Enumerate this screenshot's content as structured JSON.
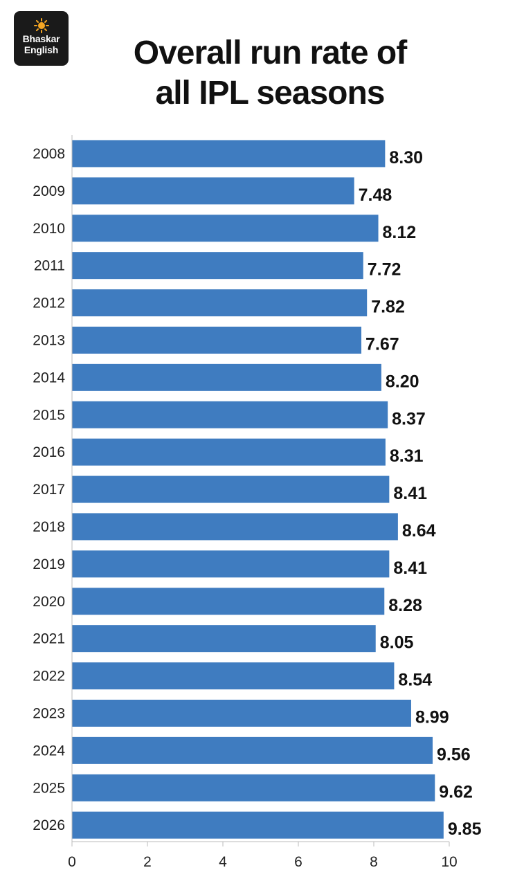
{
  "logo": {
    "line1": "Bhaskar",
    "line2": "English",
    "icon": "sun-icon"
  },
  "title_line1": "Overall run rate of",
  "title_line2": "all IPL seasons",
  "colors": {
    "bar": "#3f7cc0",
    "axis": "#bbbbbb",
    "logo_bg": "#1a1a1a",
    "sun": "#f5a623"
  },
  "chart_data": {
    "type": "bar",
    "orientation": "horizontal",
    "title": "Overall run rate of all IPL seasons",
    "xlabel": "",
    "ylabel": "",
    "xlim": [
      0,
      10
    ],
    "x_ticks": [
      0,
      2,
      4,
      6,
      8,
      10
    ],
    "grid": false,
    "categories": [
      "2008",
      "2009",
      "2010",
      "2011",
      "2012",
      "2013",
      "2014",
      "2015",
      "2016",
      "2017",
      "2018",
      "2019",
      "2020",
      "2021",
      "2022",
      "2023",
      "2024",
      "2025",
      "2026"
    ],
    "values": [
      8.3,
      7.48,
      8.12,
      7.72,
      7.82,
      7.67,
      8.2,
      8.37,
      8.31,
      8.41,
      8.64,
      8.41,
      8.28,
      8.05,
      8.54,
      8.99,
      9.56,
      9.62,
      9.85
    ],
    "value_labels": [
      "8.30",
      "7.48",
      "8.12",
      "7.72",
      "7.82",
      "7.67",
      "8.20",
      "8.37",
      "8.31",
      "8.41",
      "8.64",
      "8.41",
      "8.28",
      "8.05",
      "8.54",
      "8.99",
      "9.56",
      "9.62",
      "9.85"
    ]
  }
}
